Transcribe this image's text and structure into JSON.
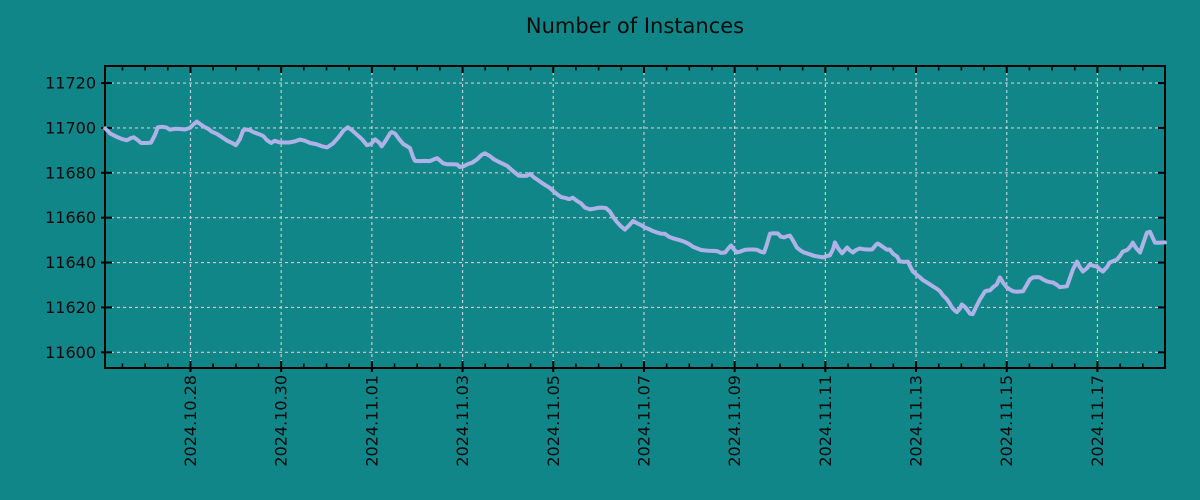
{
  "chart_data": {
    "type": "line",
    "title": "Number of Instances",
    "legend": "none",
    "grid": true,
    "colors": {
      "background": "#118688",
      "line": "#AEB2E7",
      "grid": "#C6CECE",
      "axis": "#000000",
      "text": "#0B0B0B"
    },
    "x_axis": {
      "unit": "days since 2024-10-26 00:00",
      "lim": [
        0.115,
        23.49
      ],
      "major_tick_days": [
        2,
        4,
        6,
        8,
        10,
        12,
        14,
        16,
        18,
        20,
        22
      ],
      "major_tick_labels": [
        "2024.10.28",
        "2024.10.30",
        "2024.11.01",
        "2024.11.03",
        "2024.11.05",
        "2024.11.07",
        "2024.11.09",
        "2024.11.11",
        "2024.11.13",
        "2024.11.15",
        "2024.11.17"
      ],
      "minor_step_days": 0.5
    },
    "y_axis": {
      "lim": [
        11593,
        11727.6
      ],
      "ticks": [
        11600,
        11620,
        11640,
        11660,
        11680,
        11700,
        11720
      ]
    },
    "points": [
      [
        0.12,
        11699.8
      ],
      [
        0.23,
        11697.5
      ],
      [
        0.38,
        11696.0
      ],
      [
        0.49,
        11695.0
      ],
      [
        0.6,
        11694.5
      ],
      [
        0.69,
        11695.5
      ],
      [
        0.75,
        11695.8
      ],
      [
        0.84,
        11694.5
      ],
      [
        0.91,
        11693.3
      ],
      [
        1.02,
        11693.3
      ],
      [
        1.13,
        11693.4
      ],
      [
        1.22,
        11697.0
      ],
      [
        1.28,
        11700.3
      ],
      [
        1.37,
        11700.5
      ],
      [
        1.46,
        11700.3
      ],
      [
        1.55,
        11699.2
      ],
      [
        1.66,
        11699.6
      ],
      [
        1.77,
        11699.5
      ],
      [
        1.88,
        11699.3
      ],
      [
        1.99,
        11700.0
      ],
      [
        2.06,
        11701.5
      ],
      [
        2.14,
        11702.8
      ],
      [
        2.21,
        11701.8
      ],
      [
        2.3,
        11700.5
      ],
      [
        2.39,
        11699.6
      ],
      [
        2.47,
        11698.3
      ],
      [
        2.58,
        11697.4
      ],
      [
        2.69,
        11695.9
      ],
      [
        2.81,
        11694.3
      ],
      [
        2.92,
        11693.3
      ],
      [
        3.0,
        11692.3
      ],
      [
        3.09,
        11695.0
      ],
      [
        3.16,
        11698.9
      ],
      [
        3.22,
        11699.3
      ],
      [
        3.31,
        11699.0
      ],
      [
        3.4,
        11698.0
      ],
      [
        3.49,
        11697.4
      ],
      [
        3.6,
        11696.5
      ],
      [
        3.69,
        11694.5
      ],
      [
        3.78,
        11693.3
      ],
      [
        3.86,
        11694.3
      ],
      [
        3.95,
        11693.6
      ],
      [
        4.06,
        11693.5
      ],
      [
        4.17,
        11693.5
      ],
      [
        4.3,
        11694.0
      ],
      [
        4.41,
        11694.8
      ],
      [
        4.52,
        11694.3
      ],
      [
        4.64,
        11693.3
      ],
      [
        4.77,
        11692.8
      ],
      [
        4.9,
        11691.8
      ],
      [
        5.01,
        11691.3
      ],
      [
        5.14,
        11693.0
      ],
      [
        5.27,
        11696.0
      ],
      [
        5.38,
        11699.0
      ],
      [
        5.47,
        11700.3
      ],
      [
        5.56,
        11699.0
      ],
      [
        5.67,
        11697.0
      ],
      [
        5.78,
        11695.0
      ],
      [
        5.89,
        11692.3
      ],
      [
        5.98,
        11692.8
      ],
      [
        6.07,
        11694.9
      ],
      [
        6.16,
        11693.5
      ],
      [
        6.22,
        11691.8
      ],
      [
        6.31,
        11694.5
      ],
      [
        6.4,
        11697.5
      ],
      [
        6.44,
        11698.2
      ],
      [
        6.51,
        11697.5
      ],
      [
        6.6,
        11695.0
      ],
      [
        6.69,
        11692.9
      ],
      [
        6.77,
        11691.9
      ],
      [
        6.84,
        11691.0
      ],
      [
        6.91,
        11687.0
      ],
      [
        6.95,
        11685.3
      ],
      [
        7.06,
        11685.2
      ],
      [
        7.17,
        11685.3
      ],
      [
        7.28,
        11685.2
      ],
      [
        7.37,
        11686.0
      ],
      [
        7.44,
        11686.5
      ],
      [
        7.5,
        11685.5
      ],
      [
        7.57,
        11684.3
      ],
      [
        7.66,
        11683.8
      ],
      [
        7.77,
        11683.8
      ],
      [
        7.88,
        11683.7
      ],
      [
        7.94,
        11682.6
      ],
      [
        8.03,
        11683.0
      ],
      [
        8.12,
        11683.9
      ],
      [
        8.21,
        11684.5
      ],
      [
        8.32,
        11686.0
      ],
      [
        8.41,
        11687.8
      ],
      [
        8.49,
        11688.7
      ],
      [
        8.6,
        11687.5
      ],
      [
        8.69,
        11686.0
      ],
      [
        8.78,
        11685.1
      ],
      [
        8.89,
        11684.0
      ],
      [
        8.98,
        11683.1
      ],
      [
        9.07,
        11681.5
      ],
      [
        9.16,
        11680.0
      ],
      [
        9.24,
        11678.7
      ],
      [
        9.33,
        11678.6
      ],
      [
        9.42,
        11678.7
      ],
      [
        9.49,
        11679.5
      ],
      [
        9.57,
        11678.0
      ],
      [
        9.66,
        11676.8
      ],
      [
        9.75,
        11675.5
      ],
      [
        9.84,
        11674.3
      ],
      [
        9.93,
        11673.2
      ],
      [
        10.02,
        11671.5
      ],
      [
        10.08,
        11670.5
      ],
      [
        10.17,
        11669.2
      ],
      [
        10.26,
        11668.8
      ],
      [
        10.35,
        11668.3
      ],
      [
        10.43,
        11668.9
      ],
      [
        10.52,
        11667.5
      ],
      [
        10.61,
        11666.4
      ],
      [
        10.7,
        11664.5
      ],
      [
        10.81,
        11663.7
      ],
      [
        10.9,
        11664.0
      ],
      [
        10.99,
        11664.4
      ],
      [
        11.07,
        11664.5
      ],
      [
        11.16,
        11664.3
      ],
      [
        11.25,
        11662.7
      ],
      [
        11.32,
        11660.4
      ],
      [
        11.4,
        11658.2
      ],
      [
        11.49,
        11656.2
      ],
      [
        11.58,
        11654.7
      ],
      [
        11.67,
        11656.5
      ],
      [
        11.76,
        11658.5
      ],
      [
        11.85,
        11657.5
      ],
      [
        11.93,
        11656.8
      ],
      [
        12.02,
        11655.6
      ],
      [
        12.11,
        11654.9
      ],
      [
        12.2,
        11654.0
      ],
      [
        12.29,
        11653.4
      ],
      [
        12.37,
        11652.9
      ],
      [
        12.46,
        11652.8
      ],
      [
        12.55,
        11651.5
      ],
      [
        12.64,
        11650.8
      ],
      [
        12.73,
        11650.3
      ],
      [
        12.82,
        11649.8
      ],
      [
        12.9,
        11649.2
      ],
      [
        12.99,
        11648.3
      ],
      [
        13.08,
        11647.0
      ],
      [
        13.17,
        11646.3
      ],
      [
        13.26,
        11645.6
      ],
      [
        13.34,
        11645.4
      ],
      [
        13.43,
        11645.3
      ],
      [
        13.52,
        11645.2
      ],
      [
        13.61,
        11645.1
      ],
      [
        13.7,
        11644.3
      ],
      [
        13.79,
        11644.5
      ],
      [
        13.85,
        11646.0
      ],
      [
        13.92,
        11647.6
      ],
      [
        13.98,
        11646.0
      ],
      [
        14.05,
        11644.5
      ],
      [
        14.14,
        11645.0
      ],
      [
        14.23,
        11645.7
      ],
      [
        14.32,
        11645.8
      ],
      [
        14.4,
        11645.8
      ],
      [
        14.49,
        11645.7
      ],
      [
        14.58,
        11644.8
      ],
      [
        14.65,
        11644.5
      ],
      [
        14.71,
        11648.0
      ],
      [
        14.78,
        11652.9
      ],
      [
        14.87,
        11653.1
      ],
      [
        14.95,
        11653.0
      ],
      [
        15.02,
        11651.5
      ],
      [
        15.09,
        11651.2
      ],
      [
        15.15,
        11651.7
      ],
      [
        15.22,
        11652.0
      ],
      [
        15.31,
        11649.0
      ],
      [
        15.37,
        11646.7
      ],
      [
        15.46,
        11645.3
      ],
      [
        15.53,
        11644.5
      ],
      [
        15.59,
        11644.1
      ],
      [
        15.68,
        11643.5
      ],
      [
        15.75,
        11643.0
      ],
      [
        15.81,
        11642.8
      ],
      [
        15.88,
        11642.5
      ],
      [
        15.95,
        11642.3
      ],
      [
        16.03,
        11642.9
      ],
      [
        16.1,
        11643.2
      ],
      [
        16.17,
        11646.0
      ],
      [
        16.21,
        11649.0
      ],
      [
        16.28,
        11646.5
      ],
      [
        16.37,
        11644.1
      ],
      [
        16.43,
        11645.5
      ],
      [
        16.48,
        11646.7
      ],
      [
        16.54,
        11645.5
      ],
      [
        16.61,
        11644.5
      ],
      [
        16.67,
        11645.5
      ],
      [
        16.76,
        11646.3
      ],
      [
        16.85,
        11645.9
      ],
      [
        16.94,
        11645.8
      ],
      [
        17.03,
        11645.8
      ],
      [
        17.12,
        11648.0
      ],
      [
        17.16,
        11648.5
      ],
      [
        17.23,
        11647.5
      ],
      [
        17.29,
        11646.7
      ],
      [
        17.36,
        11645.7
      ],
      [
        17.42,
        11645.8
      ],
      [
        17.49,
        11644.0
      ],
      [
        17.58,
        11642.7
      ],
      [
        17.64,
        11640.5
      ],
      [
        17.73,
        11640.3
      ],
      [
        17.82,
        11640.4
      ],
      [
        17.89,
        11637.5
      ],
      [
        17.93,
        11636.0
      ],
      [
        18.02,
        11634.5
      ],
      [
        18.09,
        11633.4
      ],
      [
        18.15,
        11632.2
      ],
      [
        18.24,
        11631.1
      ],
      [
        18.31,
        11630.2
      ],
      [
        18.37,
        11629.4
      ],
      [
        18.46,
        11628.3
      ],
      [
        18.53,
        11627.2
      ],
      [
        18.59,
        11625.5
      ],
      [
        18.68,
        11623.6
      ],
      [
        18.75,
        11621.5
      ],
      [
        18.79,
        11620.0
      ],
      [
        18.86,
        11618.5
      ],
      [
        18.9,
        11617.9
      ],
      [
        18.97,
        11619.5
      ],
      [
        19.01,
        11621.3
      ],
      [
        19.08,
        11620.2
      ],
      [
        19.12,
        11619.2
      ],
      [
        19.19,
        11617.2
      ],
      [
        19.25,
        11617.0
      ],
      [
        19.32,
        11620.0
      ],
      [
        19.41,
        11623.6
      ],
      [
        19.47,
        11625.5
      ],
      [
        19.52,
        11627.2
      ],
      [
        19.58,
        11627.5
      ],
      [
        19.63,
        11627.6
      ],
      [
        19.7,
        11629.0
      ],
      [
        19.78,
        11630.3
      ],
      [
        19.85,
        11633.4
      ],
      [
        19.92,
        11631.0
      ],
      [
        20.0,
        11629.0
      ],
      [
        20.07,
        11628.0
      ],
      [
        20.14,
        11627.2
      ],
      [
        20.22,
        11627.0
      ],
      [
        20.29,
        11627.1
      ],
      [
        20.36,
        11627.2
      ],
      [
        20.44,
        11630.0
      ],
      [
        20.51,
        11632.5
      ],
      [
        20.58,
        11633.4
      ],
      [
        20.67,
        11633.5
      ],
      [
        20.73,
        11633.4
      ],
      [
        20.8,
        11632.5
      ],
      [
        20.89,
        11631.6
      ],
      [
        20.95,
        11631.3
      ],
      [
        21.02,
        11631.1
      ],
      [
        21.11,
        11630.0
      ],
      [
        21.17,
        11629.0
      ],
      [
        21.24,
        11629.2
      ],
      [
        21.33,
        11629.4
      ],
      [
        21.39,
        11633.0
      ],
      [
        21.46,
        11636.9
      ],
      [
        21.55,
        11640.4
      ],
      [
        21.61,
        11638.0
      ],
      [
        21.68,
        11636.0
      ],
      [
        21.77,
        11637.5
      ],
      [
        21.83,
        11639.1
      ],
      [
        21.9,
        11638.6
      ],
      [
        21.99,
        11638.2
      ],
      [
        22.05,
        11637.0
      ],
      [
        22.12,
        11636.0
      ],
      [
        22.21,
        11638.0
      ],
      [
        22.27,
        11640.0
      ],
      [
        22.34,
        11640.6
      ],
      [
        22.43,
        11641.3
      ],
      [
        22.5,
        11643.0
      ],
      [
        22.56,
        11644.9
      ],
      [
        22.63,
        11645.4
      ],
      [
        22.67,
        11645.8
      ],
      [
        22.74,
        11647.5
      ],
      [
        22.78,
        11648.9
      ],
      [
        22.85,
        11646.5
      ],
      [
        22.94,
        11644.5
      ],
      [
        23.0,
        11648.0
      ],
      [
        23.09,
        11653.3
      ],
      [
        23.16,
        11653.7
      ],
      [
        23.22,
        11651.0
      ],
      [
        23.27,
        11648.9
      ],
      [
        23.33,
        11648.8
      ],
      [
        23.4,
        11648.9
      ],
      [
        23.49,
        11649.0
      ]
    ]
  }
}
